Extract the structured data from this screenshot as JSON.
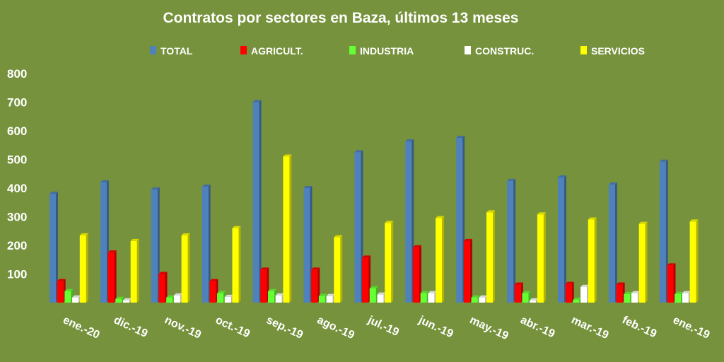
{
  "chart_data": {
    "type": "bar",
    "title": "Contratos por sectores en Baza, últimos 13 meses",
    "categories": [
      "ene.-20",
      "dic.-19",
      "nov.-19",
      "oct.-19",
      "sep.-19",
      "ago.-19",
      "jul.-19",
      "jun.-19",
      "may.-19",
      "abr.-19",
      "mar.-19",
      "feb.-19",
      "ene.-19"
    ],
    "series": [
      {
        "name": "TOTAL",
        "color": "#4f81bd",
        "values": [
          380,
          420,
          395,
          405,
          700,
          400,
          525,
          563,
          575,
          425,
          437,
          412,
          492
        ]
      },
      {
        "name": "AGRICULT.",
        "color": "#ff0000",
        "values": [
          75,
          175,
          100,
          75,
          115,
          115,
          157,
          193,
          215,
          63,
          65,
          63,
          130
        ]
      },
      {
        "name": "INDUSTRIA",
        "color": "#66ff33",
        "values": [
          40,
          13,
          18,
          33,
          40,
          23,
          50,
          33,
          18,
          33,
          10,
          30,
          30
        ]
      },
      {
        "name": "CONSTRUC.",
        "color": "#ffffff",
        "values": [
          18,
          8,
          25,
          20,
          25,
          23,
          28,
          33,
          18,
          8,
          55,
          33,
          33
        ]
      },
      {
        "name": "SERVICIOS",
        "color": "#ffff00",
        "values": [
          235,
          215,
          235,
          260,
          510,
          228,
          278,
          295,
          315,
          308,
          290,
          275,
          283
        ]
      }
    ],
    "yticks": [
      "800",
      "700",
      "600",
      "500",
      "400",
      "300",
      "200",
      "100"
    ],
    "ylim": [
      0,
      800
    ],
    "legend_position": "top",
    "grid": false
  }
}
